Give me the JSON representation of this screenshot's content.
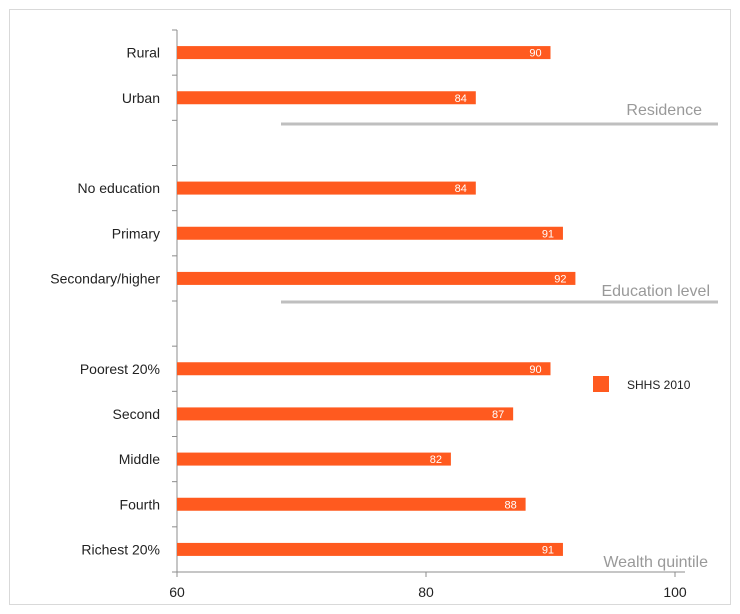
{
  "chart_data": {
    "type": "bar",
    "orientation": "horizontal",
    "categories": [
      "Rural",
      "Urban",
      "",
      "No education",
      "Primary",
      "Secondary/higher",
      "",
      "Poorest 20%",
      "Second",
      "Middle",
      "Fourth",
      "Richest 20%"
    ],
    "series": [
      {
        "name": "SHHS 2010",
        "values": [
          90,
          84,
          null,
          84,
          91,
          92,
          null,
          90,
          87,
          82,
          88,
          91
        ]
      }
    ],
    "data_labels": [
      "90",
      "84",
      "",
      "84",
      "91",
      "92",
      "",
      "90",
      "87",
      "82",
      "88",
      "91"
    ],
    "group_labels": [
      "Residence",
      "Education level",
      "Wealth quintile"
    ],
    "x_ticks": [
      "60",
      "80",
      "100"
    ],
    "xlim": [
      60,
      100
    ],
    "grid": false,
    "legend": "right",
    "bar_color": "#ff5a1f",
    "group_line_color": "#bfbfbf",
    "group_text_color": "#999999",
    "title": "",
    "xlabel": "",
    "ylabel": ""
  }
}
